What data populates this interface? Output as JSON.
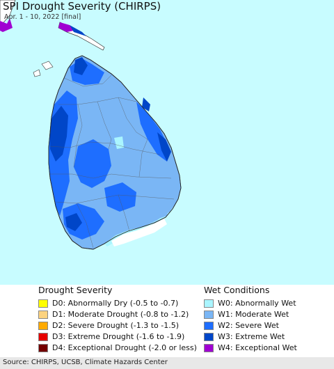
{
  "map": {
    "title": "SPI Drought Severity (CHIRPS)",
    "subtitle": "Apr. 1 - 10, 2022 [final]",
    "ocean_color": "#c8fcff",
    "region": "Sri Lanka"
  },
  "legend": {
    "drought": {
      "heading": "Drought Severity",
      "items": [
        {
          "label": "D0: Abnormally Dry (-0.5 to -0.7)",
          "color": "#ffff00"
        },
        {
          "label": "D1: Moderate Drought (-0.8 to -1.2)",
          "color": "#fcd37f"
        },
        {
          "label": "D2: Severe Drought (-1.3 to -1.5)",
          "color": "#ffaa00"
        },
        {
          "label": "D3: Extreme Drought (-1.6 to -1.9)",
          "color": "#e60000"
        },
        {
          "label": "D4: Exceptional Drought (-2.0 or less)",
          "color": "#730000"
        }
      ]
    },
    "wet": {
      "heading": "Wet Conditions",
      "items": [
        {
          "label": "W0: Abnormally Wet",
          "color": "#aaf5ff"
        },
        {
          "label": "W1: Moderate Wet",
          "color": "#7ab6f5"
        },
        {
          "label": "W2: Severe Wet",
          "color": "#1e6eff"
        },
        {
          "label": "W3: Extreme Wet",
          "color": "#0046c8"
        },
        {
          "label": "W4: Exceptional Wet",
          "color": "#a000d2"
        }
      ]
    }
  },
  "footer": {
    "source": "Source: CHIRPS, UCSB, Climate Hazards Center"
  }
}
